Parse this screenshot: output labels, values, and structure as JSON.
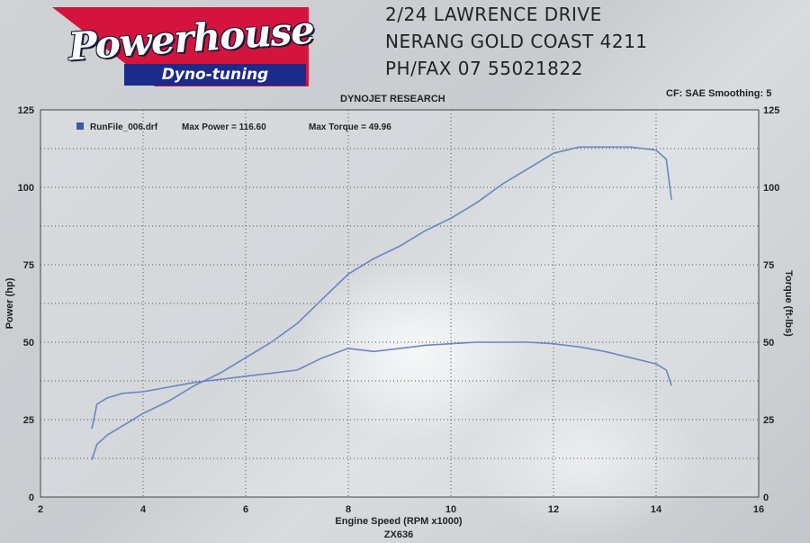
{
  "logo": {
    "name": "Powerhouse",
    "tagline": "Dyno-tuning"
  },
  "address": {
    "line1": "2/24 LAWRENCE DRIVE",
    "line2": "NERANG GOLD COAST 4211",
    "line3": "PH/FAX 07 55021822"
  },
  "header": {
    "center": "DYNOJET RESEARCH",
    "right": "CF: SAE  Smoothing: 5"
  },
  "colors": {
    "curve": "#6a86c4",
    "legend_marker": "#3a5aa8",
    "grid": "#555555"
  },
  "chart_data": {
    "type": "line",
    "xlabel": "Engine Speed (RPM x1000)",
    "ylabel_left": "Power (hp)",
    "ylabel_right": "Torque (ft-lbs)",
    "footer": "ZX636",
    "xlim": [
      2,
      16
    ],
    "ylim_left": [
      0,
      125
    ],
    "ylim_right": [
      0,
      125
    ],
    "x_ticks": [
      "2",
      "4",
      "6",
      "8",
      "10",
      "12",
      "14",
      "16"
    ],
    "y_left_ticks": [
      "0",
      "25",
      "50",
      "75",
      "100",
      "125"
    ],
    "y_right_ticks": [
      "0",
      "25",
      "50",
      "75",
      "100",
      "125"
    ],
    "grid": true,
    "legend": {
      "file": "RunFile_006.drf",
      "max_power_label": "Max Power = 116.60",
      "max_torque_label": "Max Torque = 49.96",
      "position": "top-left"
    },
    "series": [
      {
        "kind": "power",
        "axis": "left",
        "x": [
          3.0,
          3.1,
          3.3,
          3.6,
          4.0,
          4.5,
          5.0,
          5.5,
          6.0,
          6.5,
          7.0,
          7.5,
          8.0,
          8.5,
          9.0,
          9.5,
          10.0,
          10.5,
          11.0,
          11.5,
          12.0,
          12.5,
          13.0,
          13.5,
          14.0,
          14.2,
          14.3
        ],
        "values": [
          12,
          17,
          20,
          23,
          27,
          31,
          36,
          40,
          45,
          50,
          56,
          64,
          72,
          77,
          81,
          86,
          90,
          95,
          101,
          106,
          111,
          113,
          113,
          113,
          112,
          109,
          96
        ]
      },
      {
        "kind": "torque",
        "axis": "right",
        "x": [
          3.0,
          3.1,
          3.3,
          3.6,
          4.0,
          4.5,
          5.0,
          5.5,
          6.0,
          6.5,
          7.0,
          7.5,
          8.0,
          8.5,
          9.0,
          9.5,
          10.0,
          10.5,
          11.0,
          11.5,
          12.0,
          12.5,
          13.0,
          13.5,
          14.0,
          14.2,
          14.3
        ],
        "values": [
          22,
          30,
          32,
          33.5,
          34,
          35.5,
          37,
          38,
          39,
          40,
          41,
          45,
          48,
          47,
          48,
          49,
          49.5,
          50,
          50,
          50,
          49.5,
          48.5,
          47,
          45,
          43,
          41,
          36
        ]
      }
    ]
  }
}
